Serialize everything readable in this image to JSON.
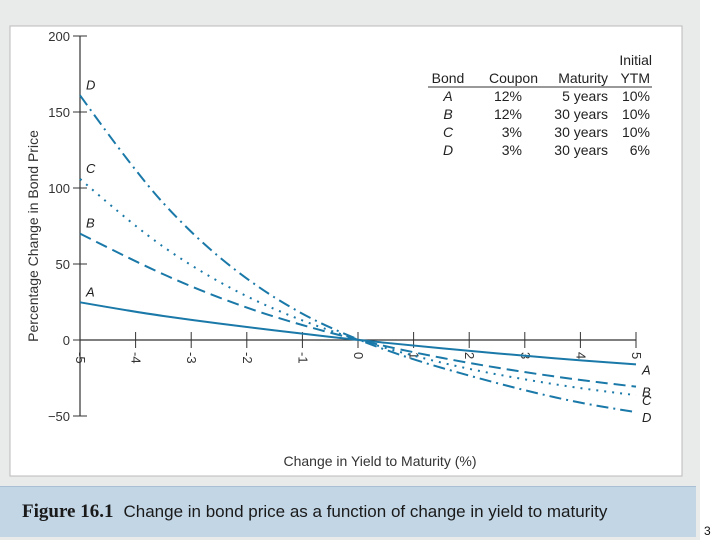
{
  "caption": {
    "figure_number": "Figure 16.1",
    "text": "Change in bond price as a function of change in yield to maturity"
  },
  "page_number": "3",
  "colors": {
    "line": "#1a79a8",
    "axis": "#333333",
    "panel": "#e9eaea",
    "caption_bar": "#c2d6e6"
  },
  "chart_data": {
    "type": "line",
    "title": "",
    "xlabel": "Change in Yield to Maturity (%)",
    "ylabel": "Percentage Change in Bond Price",
    "xlim": [
      -5,
      5
    ],
    "ylim": [
      -60,
      200
    ],
    "x_ticks": [
      -5,
      -4,
      -3,
      -2,
      -1,
      0,
      1,
      2,
      3,
      4,
      5
    ],
    "x_tick_labels": [
      "-5",
      "-4",
      "-3",
      "-2",
      "-1",
      "0",
      "1",
      "2",
      "3",
      "4",
      "5"
    ],
    "y_ticks": [
      -50,
      0,
      50,
      100,
      150,
      200
    ],
    "y_tick_labels": [
      "−50",
      "0",
      "50",
      "100",
      "150",
      "200"
    ],
    "x": [
      -5,
      -4,
      -3,
      -2,
      -1,
      0,
      1,
      2,
      3,
      4,
      5
    ],
    "series": [
      {
        "name": "A",
        "dash": "solid",
        "values": [
          24.8,
          18.4,
          13.2,
          8.5,
          4.1,
          0,
          -3.7,
          -7.2,
          -10.4,
          -13.4,
          -16.0
        ]
      },
      {
        "name": "B",
        "dash": "dashed",
        "values": [
          70.0,
          51.5,
          35.0,
          21.0,
          9.6,
          0,
          -8.2,
          -15.2,
          -21.2,
          -26.4,
          -30.7
        ]
      },
      {
        "name": "C",
        "dash": "dotted",
        "values": [
          106.0,
          74.0,
          48.6,
          28.2,
          12.5,
          0,
          -10.5,
          -19.2,
          -26.0,
          -31.8,
          -36.3
        ]
      },
      {
        "name": "D",
        "dash": "dashdot",
        "values": [
          161.0,
          110.0,
          70.0,
          39.5,
          16.5,
          0,
          -13.0,
          -23.5,
          -33.2,
          -41.5,
          -47.5
        ]
      }
    ],
    "legend_table": {
      "position": "top-right",
      "header_top": [
        "",
        "",
        "",
        "Initial"
      ],
      "headers": [
        "Bond",
        "Coupon",
        "Maturity",
        "YTM"
      ],
      "rows": [
        [
          "A",
          "12%",
          "5 years",
          "10%"
        ],
        [
          "B",
          "12%",
          "30 years",
          "10%"
        ],
        [
          "C",
          "3%",
          "30 years",
          "10%"
        ],
        [
          "D",
          "3%",
          "30 years",
          "6%"
        ]
      ]
    }
  }
}
